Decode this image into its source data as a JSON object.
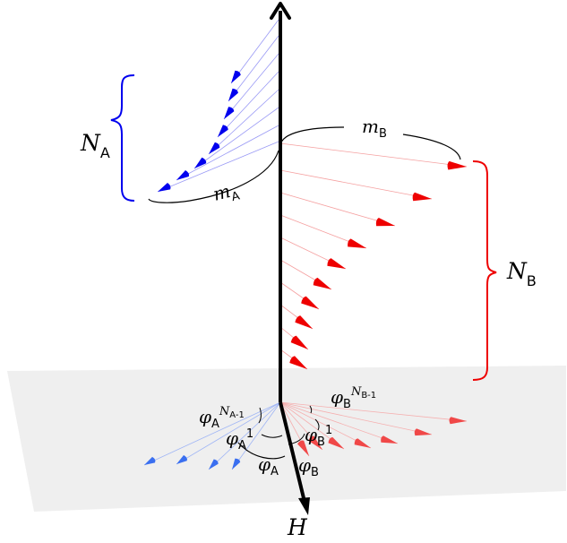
{
  "colors": {
    "sublattice_a": "#0000ee",
    "sublattice_a_projection": "#3a6ff0",
    "sublattice_b": "#ee0000",
    "sublattice_b_projection": "#f04848",
    "field_axis": "#000000",
    "plane": "#efefef"
  },
  "labels": {
    "n_a": {
      "main": "N",
      "sub": "A"
    },
    "n_b": {
      "main": "N",
      "sub": "B"
    },
    "m_a": {
      "main": "m",
      "sub": "A"
    },
    "m_b": {
      "main": "m",
      "sub": "B"
    },
    "phi_a": {
      "main": "φ",
      "sub": "A"
    },
    "phi_b": {
      "main": "φ",
      "sub": "B"
    },
    "phi_a_1": {
      "main": "φ",
      "sub": "A",
      "sup": "1"
    },
    "phi_b_1": {
      "main": "φ",
      "sub": "B",
      "sup": "1"
    },
    "phi_a_n": {
      "main": "φ",
      "sub": "A",
      "sup_main": "N",
      "sup_sub": "A-1"
    },
    "phi_b_n": {
      "main": "φ",
      "sub": "B",
      "sup_main": "N",
      "sup_sub": "B-1"
    },
    "field": "H"
  }
}
